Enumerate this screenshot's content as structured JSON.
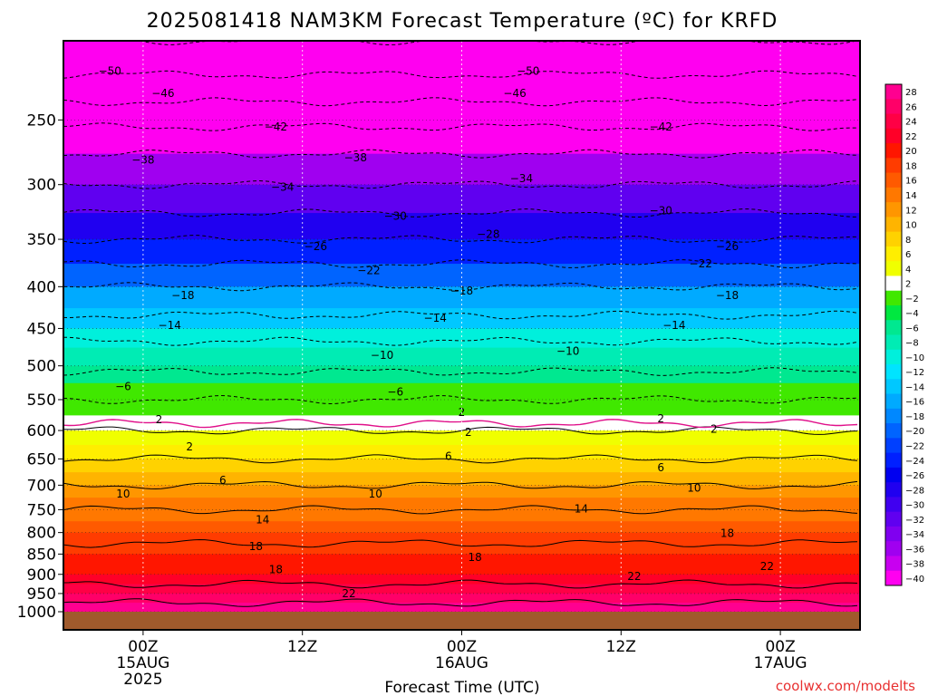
{
  "chart_data": {
    "type": "heatmap",
    "title": "2025081418 NAM3KM Forecast Temperature (ºC) for KRFD",
    "xlabel": "Forecast Time (UTC)",
    "ylabel": "",
    "credit": "coolwx.com/modelts",
    "x_range_hours_from_00Z_15AUG": [
      -6,
      54
    ],
    "y_scale": "pressure (hPa), log",
    "ylim": [
      1000,
      200
    ],
    "y_ticks": [
      "250",
      "300",
      "350",
      "400",
      "450",
      "500",
      "550",
      "600",
      "650",
      "700",
      "750",
      "800",
      "850",
      "900",
      "950",
      "1000"
    ],
    "x_ticks": [
      {
        "hour": 0,
        "lines": [
          "00Z",
          "15AUG",
          "2025"
        ]
      },
      {
        "hour": 12,
        "lines": [
          "12Z"
        ]
      },
      {
        "hour": 24,
        "lines": [
          "00Z",
          "16AUG"
        ]
      },
      {
        "hour": 36,
        "lines": [
          "12Z"
        ]
      },
      {
        "hour": 48,
        "lines": [
          "00Z",
          "17AUG"
        ]
      }
    ],
    "colorbar": {
      "labels": [
        "28",
        "26",
        "24",
        "22",
        "20",
        "18",
        "16",
        "14",
        "12",
        "10",
        "8",
        "6",
        "4",
        "2",
        "−2",
        "−4",
        "−6",
        "−8",
        "−10",
        "−12",
        "−14",
        "−16",
        "−18",
        "−20",
        "−22",
        "−24",
        "−26",
        "−28",
        "−30",
        "−32",
        "−34",
        "−36",
        "−38",
        "−40"
      ],
      "colors": [
        "#ff0090",
        "#ff0068",
        "#ff0045",
        "#ff0028",
        "#ff1600",
        "#ff3c00",
        "#ff5a00",
        "#ff7800",
        "#ff9600",
        "#ffb400",
        "#ffd200",
        "#ffee00",
        "#f0ff00",
        "#ffffff",
        "#40e800",
        "#00e840",
        "#00e890",
        "#00ecb4",
        "#00f0dc",
        "#00e4ff",
        "#00c8ff",
        "#00aaff",
        "#0088ff",
        "#0064ff",
        "#0040ff",
        "#0020ff",
        "#0000f0",
        "#2000f0",
        "#4000f0",
        "#6000f0",
        "#8000f0",
        "#a000f0",
        "#c800f0",
        "#ff00f0"
      ]
    },
    "temperature_profile_by_pressure": [
      {
        "p": 200,
        "t": -54
      },
      {
        "p": 225,
        "t": -49
      },
      {
        "p": 250,
        "t": -43
      },
      {
        "p": 275,
        "t": -38
      },
      {
        "p": 300,
        "t": -34
      },
      {
        "p": 325,
        "t": -30
      },
      {
        "p": 350,
        "t": -26
      },
      {
        "p": 375,
        "t": -22
      },
      {
        "p": 400,
        "t": -18
      },
      {
        "p": 425,
        "t": -15
      },
      {
        "p": 450,
        "t": -12
      },
      {
        "p": 475,
        "t": -9
      },
      {
        "p": 500,
        "t": -7
      },
      {
        "p": 525,
        "t": -4
      },
      {
        "p": 550,
        "t": -2
      },
      {
        "p": 575,
        "t": 0
      },
      {
        "p": 600,
        "t": 2
      },
      {
        "p": 625,
        "t": 4
      },
      {
        "p": 650,
        "t": 6
      },
      {
        "p": 675,
        "t": 8
      },
      {
        "p": 700,
        "t": 10
      },
      {
        "p": 725,
        "t": 12
      },
      {
        "p": 750,
        "t": 14
      },
      {
        "p": 775,
        "t": 15.5
      },
      {
        "p": 800,
        "t": 17
      },
      {
        "p": 825,
        "t": 18
      },
      {
        "p": 850,
        "t": 19
      },
      {
        "p": 875,
        "t": 20
      },
      {
        "p": 900,
        "t": 21
      },
      {
        "p": 925,
        "t": 22
      },
      {
        "p": 950,
        "t": 24
      },
      {
        "p": 975,
        "t": 26
      },
      {
        "p": 1000,
        "t": 28
      }
    ],
    "contour_labels": [
      {
        "text": "−50",
        "hour": -2.5,
        "p": 218
      },
      {
        "text": "−46",
        "hour": 1.5,
        "p": 232
      },
      {
        "text": "−42",
        "hour": 10,
        "p": 255
      },
      {
        "text": "−38",
        "hour": 0,
        "p": 280
      },
      {
        "text": "−34",
        "hour": 10.5,
        "p": 302
      },
      {
        "text": "−30",
        "hour": 19,
        "p": 328
      },
      {
        "text": "−26",
        "hour": 13,
        "p": 357
      },
      {
        "text": "−22",
        "hour": 17,
        "p": 382
      },
      {
        "text": "−18",
        "hour": 3,
        "p": 410
      },
      {
        "text": "−14",
        "hour": 2,
        "p": 446
      },
      {
        "text": "−10",
        "hour": 18,
        "p": 485
      },
      {
        "text": "−6",
        "hour": -1.5,
        "p": 530
      },
      {
        "text": "−6",
        "hour": 19,
        "p": 538
      },
      {
        "text": "2",
        "hour": 1.2,
        "p": 582
      },
      {
        "text": "2",
        "hour": 3.5,
        "p": 628
      },
      {
        "text": "6",
        "hour": 6,
        "p": 690
      },
      {
        "text": "10",
        "hour": -1.5,
        "p": 717
      },
      {
        "text": "14",
        "hour": 9,
        "p": 772
      },
      {
        "text": "18",
        "hour": 8.5,
        "p": 832
      },
      {
        "text": "18",
        "hour": 10,
        "p": 888
      },
      {
        "text": "22",
        "hour": 15.5,
        "p": 950
      },
      {
        "text": "−50",
        "hour": 29,
        "p": 218
      },
      {
        "text": "−46",
        "hour": 28,
        "p": 232
      },
      {
        "text": "−42",
        "hour": 39,
        "p": 255
      },
      {
        "text": "−38",
        "hour": 16,
        "p": 278
      },
      {
        "text": "−34",
        "hour": 28.5,
        "p": 295
      },
      {
        "text": "−30",
        "hour": 39,
        "p": 323
      },
      {
        "text": "−28",
        "hour": 26,
        "p": 345
      },
      {
        "text": "−26",
        "hour": 44,
        "p": 357
      },
      {
        "text": "−22",
        "hour": 42,
        "p": 375
      },
      {
        "text": "−18",
        "hour": 24,
        "p": 405
      },
      {
        "text": "−18",
        "hour": 44,
        "p": 410
      },
      {
        "text": "−14",
        "hour": 22,
        "p": 437
      },
      {
        "text": "−14",
        "hour": 40,
        "p": 446
      },
      {
        "text": "−10",
        "hour": 32,
        "p": 480
      },
      {
        "text": "2",
        "hour": 24,
        "p": 570
      },
      {
        "text": "2",
        "hour": 39,
        "p": 580
      },
      {
        "text": "2",
        "hour": 24.5,
        "p": 603
      },
      {
        "text": "2",
        "hour": 43,
        "p": 598
      },
      {
        "text": "6",
        "hour": 23,
        "p": 645
      },
      {
        "text": "6",
        "hour": 39,
        "p": 666
      },
      {
        "text": "10",
        "hour": 17.5,
        "p": 717
      },
      {
        "text": "10",
        "hour": 41.5,
        "p": 706
      },
      {
        "text": "14",
        "hour": 33,
        "p": 748
      },
      {
        "text": "18",
        "hour": 25,
        "p": 858
      },
      {
        "text": "18",
        "hour": 44,
        "p": 802
      },
      {
        "text": "22",
        "hour": 37,
        "p": 905
      },
      {
        "text": "22",
        "hour": 47,
        "p": 880
      }
    ]
  }
}
